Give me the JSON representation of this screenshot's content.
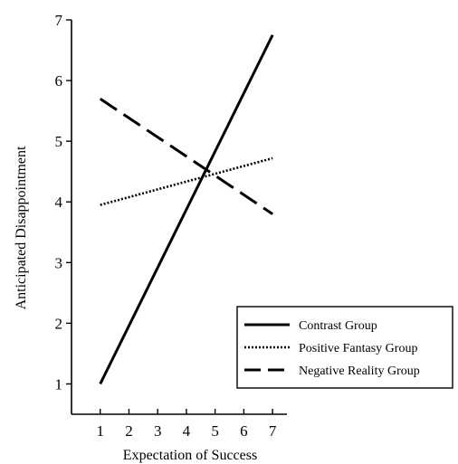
{
  "chart_data": {
    "type": "line",
    "title": "",
    "xlabel": "Expectation of Success",
    "ylabel": "Anticipated Disappointment",
    "x_ticks": [
      1,
      2,
      3,
      4,
      5,
      6,
      7
    ],
    "y_ticks": [
      1,
      2,
      3,
      4,
      5,
      6,
      7
    ],
    "xlim": [
      0,
      7.5
    ],
    "ylim": [
      0.5,
      7
    ],
    "grid": false,
    "legend_position": "bottom-right",
    "series": [
      {
        "name": "Contrast Group",
        "style": "solid",
        "color": "#000000",
        "x": [
          1,
          7
        ],
        "y": [
          1.0,
          6.75
        ]
      },
      {
        "name": "Positive Fantasy Group",
        "style": "dotted",
        "color": "#000000",
        "x": [
          1,
          7
        ],
        "y": [
          3.95,
          4.72
        ]
      },
      {
        "name": "Negative Reality Group",
        "style": "dashed",
        "color": "#000000",
        "x": [
          1,
          7
        ],
        "y": [
          5.7,
          3.8
        ]
      }
    ]
  }
}
